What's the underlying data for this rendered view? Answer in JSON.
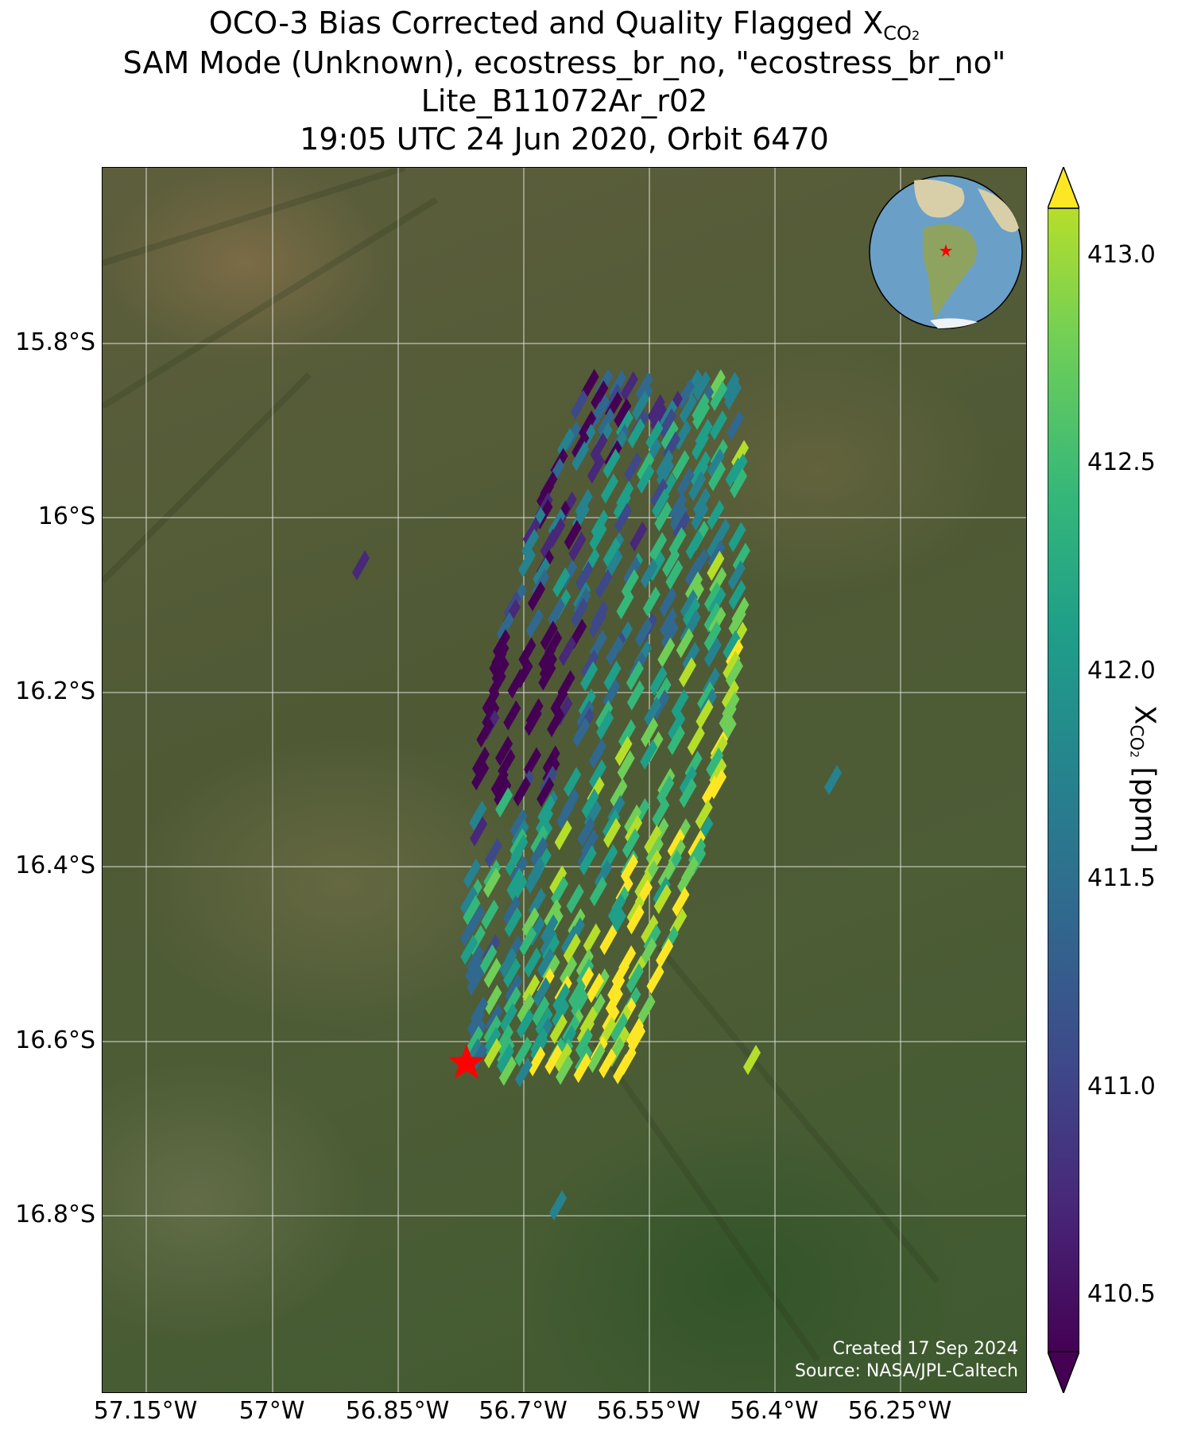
{
  "title": {
    "line1_text": "OCO-3 Bias Corrected and Quality Flagged X",
    "line1_sub": "CO",
    "line1_sub2": "2",
    "line2": "SAM Mode (Unknown), ecostress_br_no, \"ecostress_br_no\"",
    "line3": "Lite_B11072Ar_r02",
    "line4": "19:05 UTC 24 Jun 2020, Orbit 6470"
  },
  "map": {
    "lat_ticks": [
      "15.8°S",
      "16°S",
      "16.2°S",
      "16.4°S",
      "16.6°S",
      "16.8°S"
    ],
    "lon_ticks": [
      "57.15°W",
      "57°W",
      "56.85°W",
      "56.7°W",
      "56.55°W",
      "56.4°W",
      "56.25°W"
    ],
    "target_marker": "red-star",
    "background": "satellite imagery",
    "inset": "globe-south-america"
  },
  "colorbar": {
    "colormap": "viridis",
    "range": [
      410.4,
      413.15
    ],
    "ticks": [
      "413.0",
      "412.5",
      "412.0",
      "411.5",
      "411.0",
      "410.5"
    ],
    "label_text": "X",
    "label_sub": "CO",
    "label_sub2": "2",
    "label_unit": " [ppm]",
    "extend": "both"
  },
  "credit": {
    "line1": "Created 17 Sep 2024",
    "line2": "Source: NASA/JPL-Caltech"
  },
  "colors": {
    "star": "#ff0000",
    "grid": "#ffffff"
  }
}
